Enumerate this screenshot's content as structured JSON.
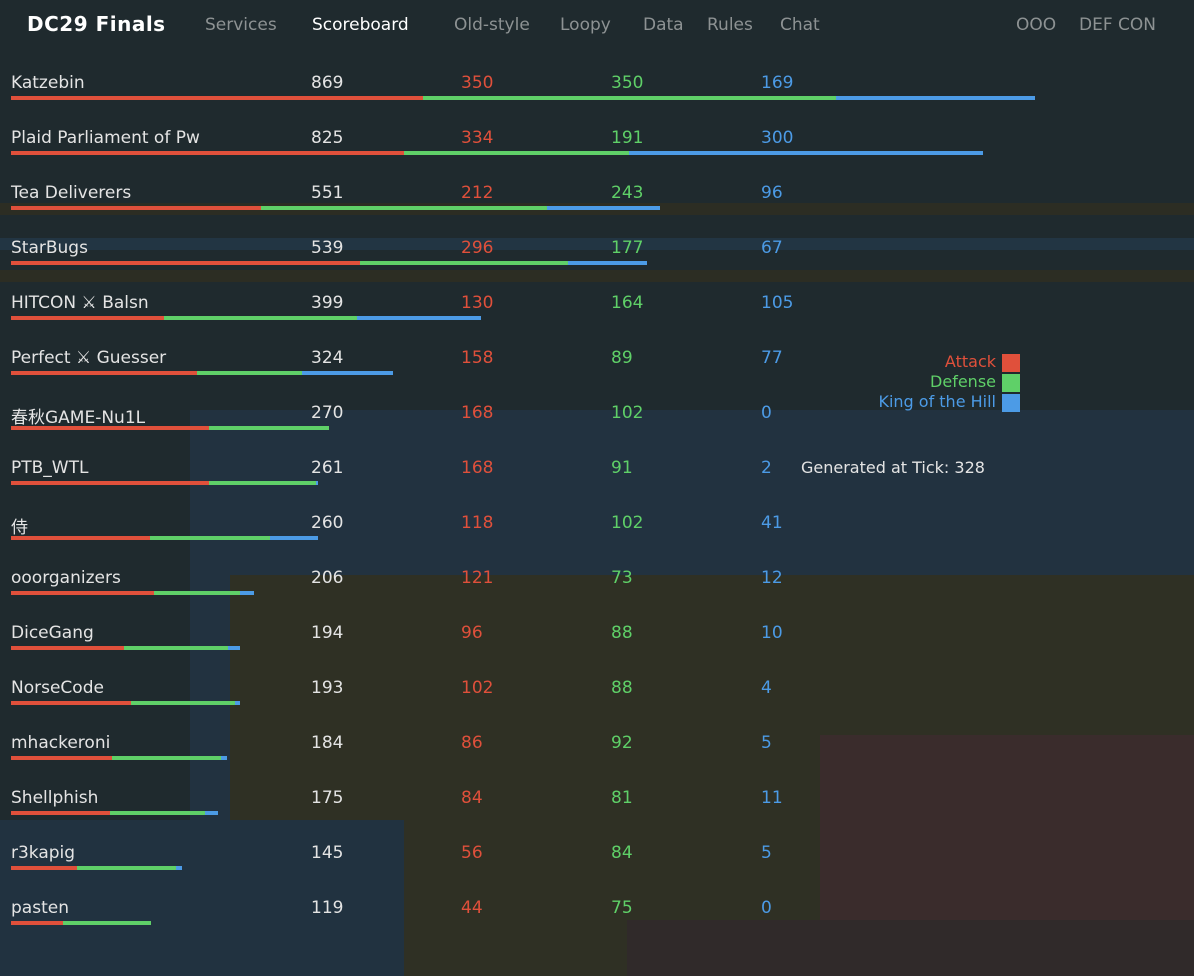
{
  "header": {
    "brand": "DC29 Finals",
    "nav": [
      "Services",
      "Scoreboard",
      "Old-style",
      "Loopy",
      "Data",
      "Rules",
      "Chat"
    ],
    "active": "Scoreboard",
    "right": [
      "OOO",
      "DEF CON"
    ]
  },
  "colors": {
    "attack": "#e0503b",
    "defense": "#5fd068",
    "koh": "#4c9be6"
  },
  "teams": [
    {
      "name": "Katzebin",
      "total": "869",
      "attack": "350",
      "defense": "350",
      "koh": "169"
    },
    {
      "name": "Plaid Parliament of Pw",
      "total": "825",
      "attack": "334",
      "defense": "191",
      "koh": "300"
    },
    {
      "name": "Tea Deliverers",
      "total": "551",
      "attack": "212",
      "defense": "243",
      "koh": "96"
    },
    {
      "name": "StarBugs",
      "total": "539",
      "attack": "296",
      "defense": "177",
      "koh": "67"
    },
    {
      "name": "HITCON ⚔ Balsn",
      "total": "399",
      "attack": "130",
      "defense": "164",
      "koh": "105"
    },
    {
      "name": "Perfect ⚔ Guesser",
      "total": "324",
      "attack": "158",
      "defense": "89",
      "koh": "77"
    },
    {
      "name": "春秋GAME-Nu1L",
      "total": "270",
      "attack": "168",
      "defense": "102",
      "koh": "0"
    },
    {
      "name": "PTB_WTL",
      "total": "261",
      "attack": "168",
      "defense": "91",
      "koh": "2"
    },
    {
      "name": "侍",
      "total": "260",
      "attack": "118",
      "defense": "102",
      "koh": "41"
    },
    {
      "name": "ooorganizers",
      "total": "206",
      "attack": "121",
      "defense": "73",
      "koh": "12"
    },
    {
      "name": "DiceGang",
      "total": "194",
      "attack": "96",
      "defense": "88",
      "koh": "10"
    },
    {
      "name": "NorseCode",
      "total": "193",
      "attack": "102",
      "defense": "88",
      "koh": "4"
    },
    {
      "name": "mhackeroni",
      "total": "184",
      "attack": "86",
      "defense": "92",
      "koh": "5"
    },
    {
      "name": "Shellphish",
      "total": "175",
      "attack": "84",
      "defense": "81",
      "koh": "11"
    },
    {
      "name": "r3kapig",
      "total": "145",
      "attack": "56",
      "defense": "84",
      "koh": "5"
    },
    {
      "name": "pasten",
      "total": "119",
      "attack": "44",
      "defense": "75",
      "koh": "0"
    }
  ],
  "legend": {
    "attack": "Attack",
    "defense": "Defense",
    "koh": "King of the Hill"
  },
  "generated": "Generated at Tick: 328"
}
